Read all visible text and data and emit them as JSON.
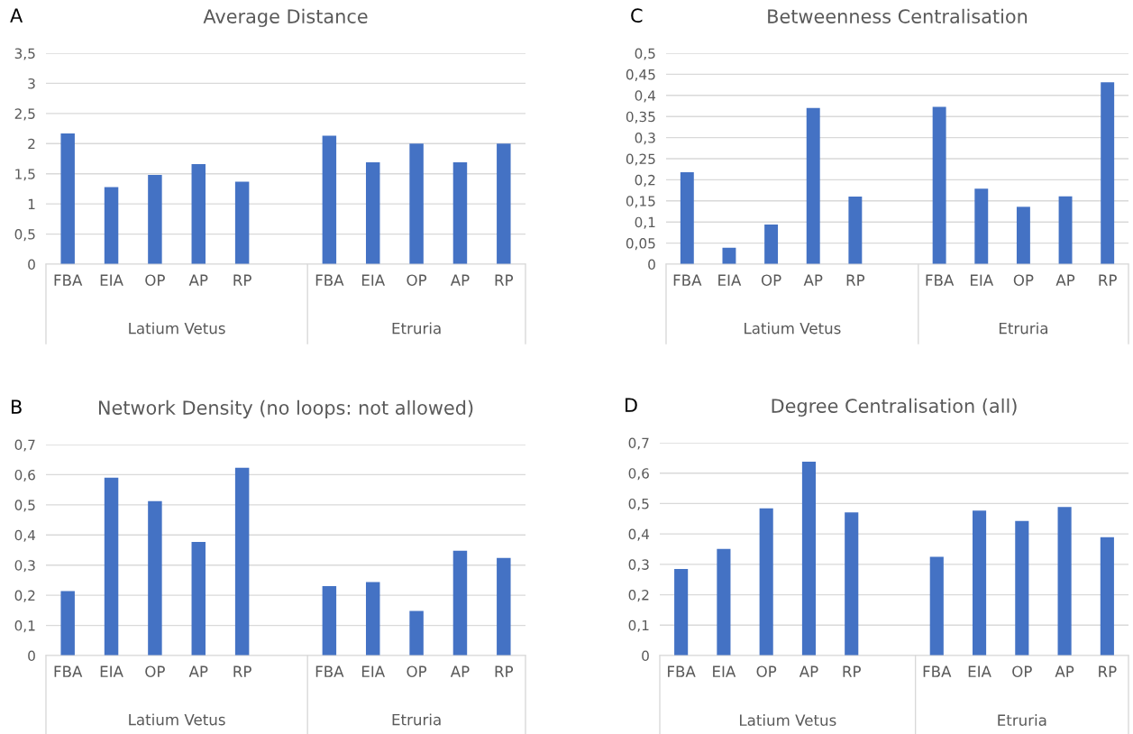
{
  "chart_data": [
    {
      "type": "bar",
      "subtitle": "A",
      "title": "Average Distance",
      "categories": [
        "FBA",
        "EIA",
        "OP",
        "AP",
        "RP",
        null,
        "FBA",
        "EIA",
        "OP",
        "AP",
        "RP"
      ],
      "values": [
        2.17,
        1.28,
        1.48,
        1.66,
        1.37,
        null,
        2.13,
        1.69,
        2.0,
        1.69,
        2.0
      ],
      "color": "#4472c4",
      "ylim": [
        0,
        3.5
      ],
      "yticks": [
        0,
        {
          "value": 0.5,
          "label": "0,5"
        },
        1,
        {
          "value": 1.5,
          "label": "1,5"
        },
        2,
        {
          "value": 2.5,
          "label": "2,5"
        },
        3,
        {
          "value": 3.5,
          "label": "3,5"
        }
      ],
      "grid": "y",
      "annotations": [
        "Latium Vetus",
        "Etruria"
      ]
    },
    {
      "type": "bar",
      "subtitle": "C",
      "title": "Betweenness Centralisation",
      "categories": [
        "FBA",
        "EIA",
        "OP",
        "AP",
        "RP",
        null,
        "FBA",
        "EIA",
        "OP",
        "AP",
        "RP"
      ],
      "values": [
        0.218,
        0.039,
        0.094,
        0.37,
        0.16,
        null,
        0.373,
        0.179,
        0.136,
        0.161,
        0.431
      ],
      "color": "#4472c4",
      "ylim": [
        0,
        0.5
      ],
      "yticks": [
        0,
        {
          "value": 0.05,
          "label": "0,05"
        },
        {
          "value": 0.1,
          "label": "0,1"
        },
        {
          "value": 0.15,
          "label": "0,15"
        },
        {
          "value": 0.2,
          "label": "0,2"
        },
        {
          "value": 0.25,
          "label": "0,25"
        },
        {
          "value": 0.3,
          "label": "0,3"
        },
        {
          "value": 0.35,
          "label": "0,35"
        },
        {
          "value": 0.4,
          "label": "0,4"
        },
        {
          "value": 0.45,
          "label": "0,45"
        },
        {
          "value": 0.5,
          "label": "0,5"
        }
      ],
      "grid": "y",
      "annotations": [
        "Latium Vetus",
        "Etruria"
      ]
    },
    {
      "type": "bar",
      "subtitle": "B",
      "title": "Network Density (no loops: not allowed)",
      "categories": [
        "FBA",
        "EIA",
        "OP",
        "AP",
        "RP",
        null,
        "FBA",
        "EIA",
        "OP",
        "AP",
        "RP"
      ],
      "values": [
        0.214,
        0.59,
        0.512,
        0.377,
        0.623,
        null,
        0.23,
        0.244,
        0.148,
        0.348,
        0.324
      ],
      "color": "#4472c4",
      "ylim": [
        0,
        0.7
      ],
      "yticks": [
        0,
        {
          "value": 0.1,
          "label": "0,1"
        },
        {
          "value": 0.2,
          "label": "0,2"
        },
        {
          "value": 0.3,
          "label": "0,3"
        },
        {
          "value": 0.4,
          "label": "0,4"
        },
        {
          "value": 0.5,
          "label": "0,5"
        },
        {
          "value": 0.6,
          "label": "0,6"
        },
        {
          "value": 0.7,
          "label": "0,7"
        }
      ],
      "grid": "y",
      "annotations": [
        "Latium Vetus",
        "Etruria"
      ]
    },
    {
      "type": "bar",
      "subtitle": "D",
      "title": "Degree Centralisation (all)",
      "categories": [
        "FBA",
        "EIA",
        "OP",
        "AP",
        "RP",
        null,
        "FBA",
        "EIA",
        "OP",
        "AP",
        "RP"
      ],
      "values": [
        0.285,
        0.351,
        0.484,
        0.638,
        0.471,
        null,
        0.325,
        0.477,
        0.443,
        0.489,
        0.389
      ],
      "color": "#4472c4",
      "ylim": [
        0,
        0.7
      ],
      "yticks": [
        0,
        {
          "value": 0.1,
          "label": "0,1"
        },
        {
          "value": 0.2,
          "label": "0,2"
        },
        {
          "value": 0.3,
          "label": "0,3"
        },
        {
          "value": 0.4,
          "label": "0,4"
        },
        {
          "value": 0.5,
          "label": "0,5"
        },
        {
          "value": 0.6,
          "label": "0,6"
        },
        {
          "value": 0.7,
          "label": "0,7"
        }
      ],
      "grid": "y",
      "annotations": [
        "Latium Vetus",
        "Etruria"
      ]
    }
  ]
}
